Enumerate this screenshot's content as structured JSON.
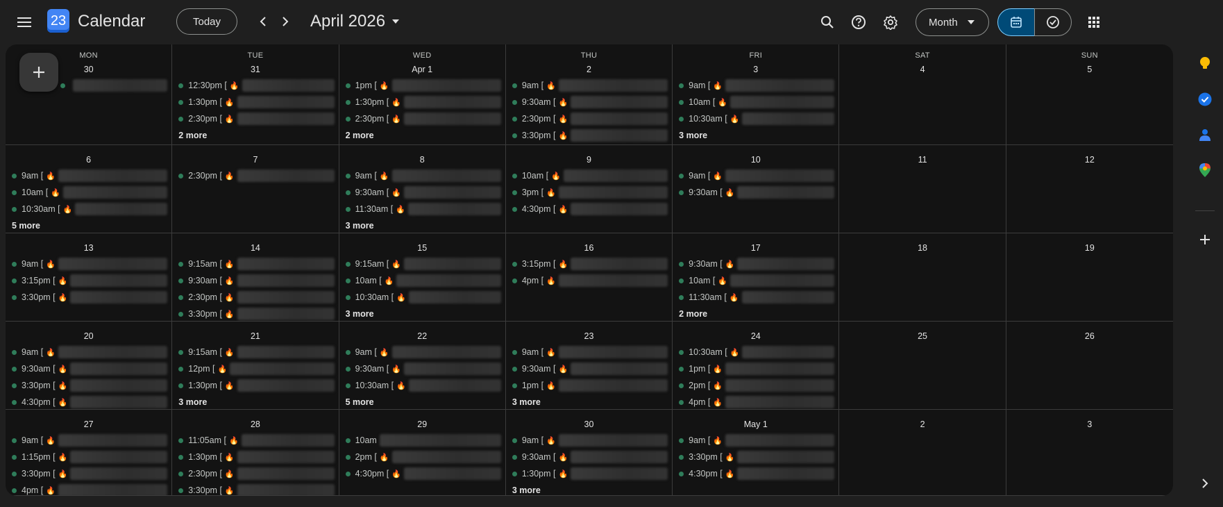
{
  "header": {
    "app_title": "Calendar",
    "logo_text": "23",
    "today_label": "Today",
    "month_title": "April 2026",
    "view_label": "Month"
  },
  "icons": {
    "menu": "menu-icon",
    "prev": "chevron-left-icon",
    "next": "chevron-right-icon",
    "search": "search-icon",
    "help": "help-icon",
    "settings": "gear-icon",
    "calendar_view": "calendar-icon",
    "tasks_view": "task-check-icon",
    "apps": "apps-grid-icon",
    "create": "plus-icon"
  },
  "weekdays": [
    "MON",
    "TUE",
    "WED",
    "THU",
    "FRI",
    "SAT",
    "SUN"
  ],
  "weeks": [
    [
      {
        "day": "30",
        "events": [
          ""
        ],
        "more": ""
      },
      {
        "day": "31",
        "events": [
          "12:30pm [",
          "1:30pm [",
          "2:30pm ["
        ],
        "more": "2 more"
      },
      {
        "day": "Apr 1",
        "events": [
          "1pm [",
          "1:30pm [",
          "2:30pm ["
        ],
        "more": "2 more"
      },
      {
        "day": "2",
        "events": [
          "9am [",
          "9:30am [",
          "2:30pm [",
          "3:30pm ["
        ],
        "more": ""
      },
      {
        "day": "3",
        "events": [
          "9am [",
          "10am [",
          "10:30am ["
        ],
        "more": "3 more"
      },
      {
        "day": "4",
        "events": [],
        "more": ""
      },
      {
        "day": "5",
        "events": [],
        "more": ""
      }
    ],
    [
      {
        "day": "6",
        "events": [
          "9am [",
          "10am [",
          "10:30am ["
        ],
        "more": "5 more"
      },
      {
        "day": "7",
        "events": [
          "2:30pm ["
        ],
        "more": ""
      },
      {
        "day": "8",
        "events": [
          "9am [",
          "9:30am [",
          "11:30am ["
        ],
        "more": "3 more"
      },
      {
        "day": "9",
        "events": [
          "10am [",
          "3pm [",
          "4:30pm ["
        ],
        "more": ""
      },
      {
        "day": "10",
        "events": [
          "9am [",
          "9:30am ["
        ],
        "more": ""
      },
      {
        "day": "11",
        "events": [],
        "more": ""
      },
      {
        "day": "12",
        "events": [],
        "more": ""
      }
    ],
    [
      {
        "day": "13",
        "events": [
          "9am [",
          "3:15pm [",
          "3:30pm ["
        ],
        "more": ""
      },
      {
        "day": "14",
        "events": [
          "9:15am [",
          "9:30am [",
          "2:30pm [",
          "3:30pm ["
        ],
        "more": ""
      },
      {
        "day": "15",
        "events": [
          "9:15am [",
          "10am [",
          "10:30am ["
        ],
        "more": "3 more"
      },
      {
        "day": "16",
        "events": [
          "3:15pm [",
          "4pm ["
        ],
        "more": ""
      },
      {
        "day": "17",
        "events": [
          "9:30am [",
          "10am [",
          "11:30am ["
        ],
        "more": "2 more"
      },
      {
        "day": "18",
        "events": [],
        "more": ""
      },
      {
        "day": "19",
        "events": [],
        "more": ""
      }
    ],
    [
      {
        "day": "20",
        "events": [
          "9am [",
          "9:30am [",
          "3:30pm [",
          "4:30pm ["
        ],
        "more": ""
      },
      {
        "day": "21",
        "events": [
          "9:15am [",
          "12pm [",
          "1:30pm ["
        ],
        "more": "3 more"
      },
      {
        "day": "22",
        "events": [
          "9am [",
          "9:30am [",
          "10:30am ["
        ],
        "more": "5 more"
      },
      {
        "day": "23",
        "events": [
          "9am [",
          "9:30am [",
          "1pm ["
        ],
        "more": "3 more"
      },
      {
        "day": "24",
        "events": [
          "10:30am [",
          "1pm [",
          "2pm [",
          "4pm ["
        ],
        "more": ""
      },
      {
        "day": "25",
        "events": [],
        "more": ""
      },
      {
        "day": "26",
        "events": [],
        "more": ""
      }
    ],
    [
      {
        "day": "27",
        "events": [
          "9am [",
          "1:15pm [",
          "3:30pm [",
          "4pm ["
        ],
        "more": ""
      },
      {
        "day": "28",
        "events": [
          "11:05am [",
          "1:30pm [",
          "2:30pm [",
          "3:30pm ["
        ],
        "more": ""
      },
      {
        "day": "29",
        "events": [
          "10am",
          "2pm [",
          "4:30pm ["
        ],
        "more": ""
      },
      {
        "day": "30",
        "events": [
          "9am [",
          "9:30am [",
          "1:30pm ["
        ],
        "more": "3 more"
      },
      {
        "day": "May 1",
        "events": [
          "9am [",
          "3:30pm [",
          "4:30pm ["
        ],
        "more": ""
      },
      {
        "day": "2",
        "events": [],
        "more": ""
      },
      {
        "day": "3",
        "events": [],
        "more": ""
      }
    ]
  ],
  "side_panel": [
    "keep-icon",
    "tasks-icon",
    "contacts-icon",
    "maps-icon",
    "add-icon",
    "chevron-right-icon"
  ],
  "colors": {
    "background": "#1f1f1f",
    "grid": "#131313",
    "event_dot": "#2f7d5a",
    "accent": "#004a77"
  }
}
